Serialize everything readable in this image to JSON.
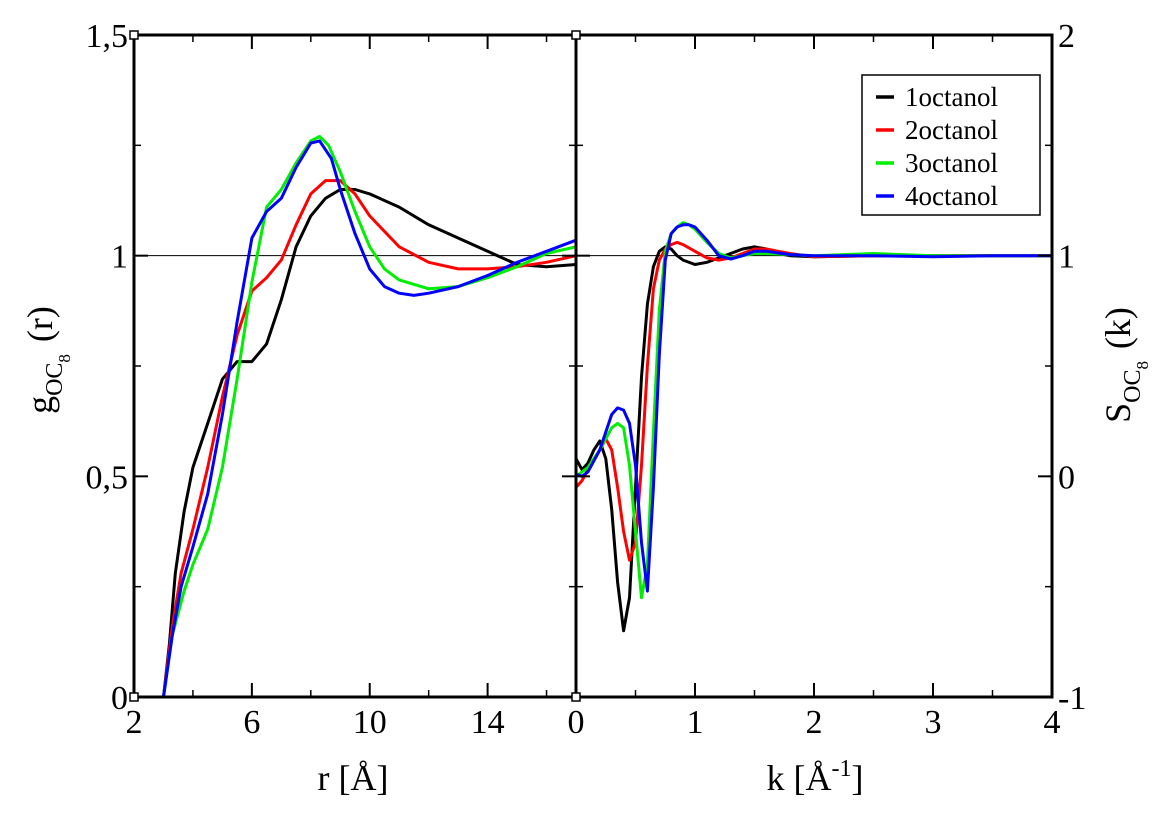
{
  "chart_data": [
    {
      "type": "line",
      "panel": "left",
      "title": "",
      "xlabel": "r [Å]",
      "ylabel_main": "g",
      "ylabel_sub": "OC",
      "ylabel_subsub": "8",
      "ylabel_arg": "(r)",
      "xlim": [
        2,
        17
      ],
      "ylim": [
        0,
        1.5
      ],
      "xticks": [
        2,
        6,
        10,
        14
      ],
      "xtick_labels": [
        "2",
        "6",
        "10",
        "14"
      ],
      "yticks": [
        0,
        0.5,
        1,
        1.5
      ],
      "ytick_labels": [
        "0",
        "0,5",
        "1",
        "1,5"
      ],
      "reference_line": 1,
      "series": [
        {
          "name": "1octanol",
          "color": "#000000",
          "x": [
            3.0,
            3.2,
            3.4,
            3.7,
            4.0,
            4.5,
            5.0,
            5.5,
            6.0,
            6.5,
            7.0,
            7.5,
            8.0,
            8.5,
            9.0,
            9.5,
            10.0,
            11.0,
            12.0,
            13.0,
            14.0,
            15.0,
            16.0,
            17.0
          ],
          "y": [
            0.0,
            0.12,
            0.28,
            0.42,
            0.52,
            0.62,
            0.72,
            0.76,
            0.76,
            0.8,
            0.9,
            1.02,
            1.09,
            1.13,
            1.15,
            1.15,
            1.14,
            1.11,
            1.07,
            1.04,
            1.01,
            0.98,
            0.975,
            0.98
          ]
        },
        {
          "name": "2octanol",
          "color": "#ff0000",
          "x": [
            3.0,
            3.3,
            3.6,
            4.0,
            4.5,
            5.0,
            5.5,
            6.0,
            6.5,
            7.0,
            7.5,
            8.0,
            8.5,
            9.0,
            9.5,
            10.0,
            11.0,
            12.0,
            13.0,
            14.0,
            15.0,
            16.0,
            17.0
          ],
          "y": [
            0.0,
            0.16,
            0.28,
            0.38,
            0.52,
            0.68,
            0.82,
            0.92,
            0.95,
            0.99,
            1.07,
            1.14,
            1.17,
            1.17,
            1.14,
            1.09,
            1.02,
            0.985,
            0.97,
            0.97,
            0.975,
            0.985,
            1.0
          ]
        },
        {
          "name": "3octanol",
          "color": "#00ee00",
          "x": [
            3.0,
            3.3,
            3.7,
            4.0,
            4.5,
            5.0,
            5.5,
            6.0,
            6.5,
            7.0,
            7.5,
            8.0,
            8.3,
            8.6,
            9.0,
            9.5,
            10.0,
            10.5,
            11.0,
            12.0,
            13.0,
            14.0,
            15.0,
            16.0,
            17.0
          ],
          "y": [
            0.0,
            0.14,
            0.24,
            0.3,
            0.38,
            0.52,
            0.72,
            0.94,
            1.11,
            1.15,
            1.21,
            1.26,
            1.27,
            1.25,
            1.19,
            1.1,
            1.02,
            0.97,
            0.945,
            0.925,
            0.93,
            0.95,
            0.975,
            1.005,
            1.02
          ]
        },
        {
          "name": "4octanol",
          "color": "#0000ff",
          "x": [
            3.0,
            3.3,
            3.6,
            4.0,
            4.5,
            5.0,
            5.5,
            6.0,
            6.5,
            7.0,
            7.5,
            8.0,
            8.3,
            8.7,
            9.0,
            9.5,
            10.0,
            10.5,
            11.0,
            11.5,
            12.0,
            13.0,
            14.0,
            15.0,
            16.0,
            17.0
          ],
          "y": [
            0.0,
            0.14,
            0.25,
            0.34,
            0.46,
            0.64,
            0.85,
            1.04,
            1.1,
            1.13,
            1.2,
            1.255,
            1.26,
            1.22,
            1.15,
            1.05,
            0.97,
            0.93,
            0.915,
            0.91,
            0.915,
            0.93,
            0.955,
            0.985,
            1.01,
            1.035
          ]
        }
      ]
    },
    {
      "type": "line",
      "panel": "right",
      "title": "",
      "xlabel_main": "k [Å",
      "xlabel_sup": "-1",
      "xlabel_end": "]",
      "ylabel_main": "S",
      "ylabel_sub": "OC",
      "ylabel_subsub": "8",
      "ylabel_arg": "(k)",
      "xlim": [
        0,
        4
      ],
      "ylim": [
        -1,
        2
      ],
      "xticks": [
        0,
        1,
        2,
        3,
        4
      ],
      "xtick_labels": [
        "0",
        "1",
        "2",
        "3",
        "4"
      ],
      "yticks": [
        -1,
        0,
        1,
        2
      ],
      "ytick_labels": [
        "-1",
        "0",
        "1",
        "2"
      ],
      "reference_line": 1,
      "legend_position": "top-right",
      "series": [
        {
          "name": "1octanol",
          "color": "#000000",
          "x": [
            0.0,
            0.05,
            0.1,
            0.15,
            0.2,
            0.25,
            0.3,
            0.35,
            0.4,
            0.45,
            0.5,
            0.55,
            0.6,
            0.65,
            0.7,
            0.75,
            0.8,
            0.85,
            0.9,
            1.0,
            1.1,
            1.2,
            1.3,
            1.4,
            1.5,
            1.6,
            1.7,
            1.8,
            2.0,
            2.5,
            3.0,
            3.5,
            4.0
          ],
          "y": [
            0.08,
            0.03,
            0.06,
            0.12,
            0.16,
            0.08,
            -0.15,
            -0.48,
            -0.7,
            -0.55,
            -0.05,
            0.45,
            0.78,
            0.95,
            1.02,
            1.04,
            1.03,
            1.0,
            0.98,
            0.96,
            0.97,
            0.99,
            1.01,
            1.03,
            1.04,
            1.03,
            1.01,
            1.0,
            0.995,
            1.0,
            1.0,
            1.0,
            1.0
          ]
        },
        {
          "name": "2octanol",
          "color": "#ff0000",
          "x": [
            0.0,
            0.05,
            0.1,
            0.2,
            0.25,
            0.3,
            0.35,
            0.4,
            0.45,
            0.5,
            0.55,
            0.6,
            0.65,
            0.7,
            0.75,
            0.8,
            0.85,
            0.9,
            1.0,
            1.1,
            1.2,
            1.3,
            1.4,
            1.5,
            1.6,
            1.7,
            1.8,
            2.0,
            2.5,
            3.0,
            3.5,
            4.0
          ],
          "y": [
            -0.05,
            -0.02,
            0.03,
            0.12,
            0.17,
            0.12,
            -0.05,
            -0.25,
            -0.38,
            -0.3,
            0.05,
            0.5,
            0.85,
            0.98,
            1.03,
            1.05,
            1.06,
            1.05,
            1.02,
            0.99,
            0.98,
            0.99,
            1.01,
            1.03,
            1.03,
            1.02,
            1.01,
            0.995,
            1.0,
            1.0,
            1.0,
            1.0
          ]
        },
        {
          "name": "3octanol",
          "color": "#00ee00",
          "x": [
            0.0,
            0.05,
            0.1,
            0.2,
            0.3,
            0.35,
            0.4,
            0.45,
            0.5,
            0.55,
            0.6,
            0.65,
            0.7,
            0.75,
            0.8,
            0.85,
            0.9,
            0.95,
            1.0,
            1.1,
            1.2,
            1.3,
            1.4,
            1.5,
            1.6,
            1.8,
            2.0,
            2.5,
            3.0,
            3.5,
            4.0
          ],
          "y": [
            0.0,
            0.02,
            0.04,
            0.12,
            0.22,
            0.24,
            0.22,
            0.05,
            -0.25,
            -0.55,
            -0.4,
            0.2,
            0.75,
            1.02,
            1.1,
            1.13,
            1.15,
            1.14,
            1.12,
            1.06,
            1.01,
            0.99,
            1.0,
            1.01,
            1.01,
            1.005,
            1.0,
            1.01,
            1.0,
            1.0,
            1.0
          ]
        },
        {
          "name": "4octanol",
          "color": "#0000ff",
          "x": [
            0.0,
            0.05,
            0.1,
            0.2,
            0.3,
            0.35,
            0.4,
            0.45,
            0.5,
            0.55,
            0.6,
            0.65,
            0.7,
            0.75,
            0.8,
            0.85,
            0.9,
            0.95,
            1.0,
            1.1,
            1.2,
            1.3,
            1.4,
            1.5,
            1.6,
            1.8,
            2.0,
            2.5,
            3.0,
            3.5,
            4.0
          ],
          "y": [
            0.01,
            0.0,
            0.02,
            0.12,
            0.28,
            0.31,
            0.3,
            0.24,
            0.05,
            -0.3,
            -0.52,
            -0.05,
            0.55,
            0.98,
            1.1,
            1.13,
            1.14,
            1.14,
            1.13,
            1.07,
            1.0,
            0.985,
            1.0,
            1.02,
            1.02,
            1.005,
            1.0,
            1.0,
            0.995,
            1.0,
            1.0
          ]
        }
      ]
    }
  ]
}
